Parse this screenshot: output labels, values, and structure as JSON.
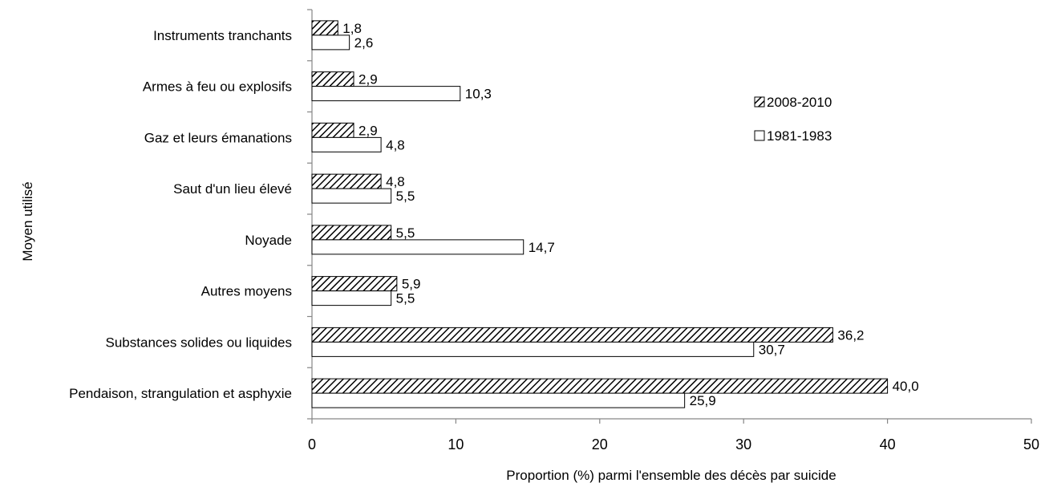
{
  "chart_data": {
    "type": "bar",
    "orientation": "horizontal",
    "title": "",
    "xlabel": "Proportion (%) parmi l'ensemble des décès par suicide",
    "ylabel": "Moyen utilisé",
    "xlim": [
      0,
      50
    ],
    "xticks": [
      0,
      10,
      20,
      30,
      40,
      50
    ],
    "grid": false,
    "legend_position": "right",
    "categories": [
      "Instruments tranchants",
      "Armes à feu ou explosifs",
      "Gaz et leurs émanations",
      "Saut d'un lieu élevé",
      "Noyade",
      "Autres moyens",
      "Substances solides ou liquides",
      "Pendaison, strangulation et asphyxie"
    ],
    "series": [
      {
        "name": "2008-2010",
        "pattern": "hatched",
        "values": [
          1.8,
          2.9,
          2.9,
          4.8,
          5.5,
          5.9,
          36.2,
          40.0
        ],
        "labels": [
          "1,8",
          "2,9",
          "2,9",
          "4,8",
          "5,5",
          "5,9",
          "36,2",
          "40,0"
        ]
      },
      {
        "name": "1981-1983",
        "pattern": "white",
        "values": [
          2.6,
          10.3,
          4.8,
          5.5,
          14.7,
          5.5,
          30.7,
          25.9
        ],
        "labels": [
          "2,6",
          "10,3",
          "4,8",
          "5,5",
          "14,7",
          "5,5",
          "30,7",
          "25,9"
        ]
      }
    ]
  },
  "colors": {
    "bar_stroke": "#000000",
    "bar_fill": "#ffffff",
    "axis": "#868686"
  }
}
